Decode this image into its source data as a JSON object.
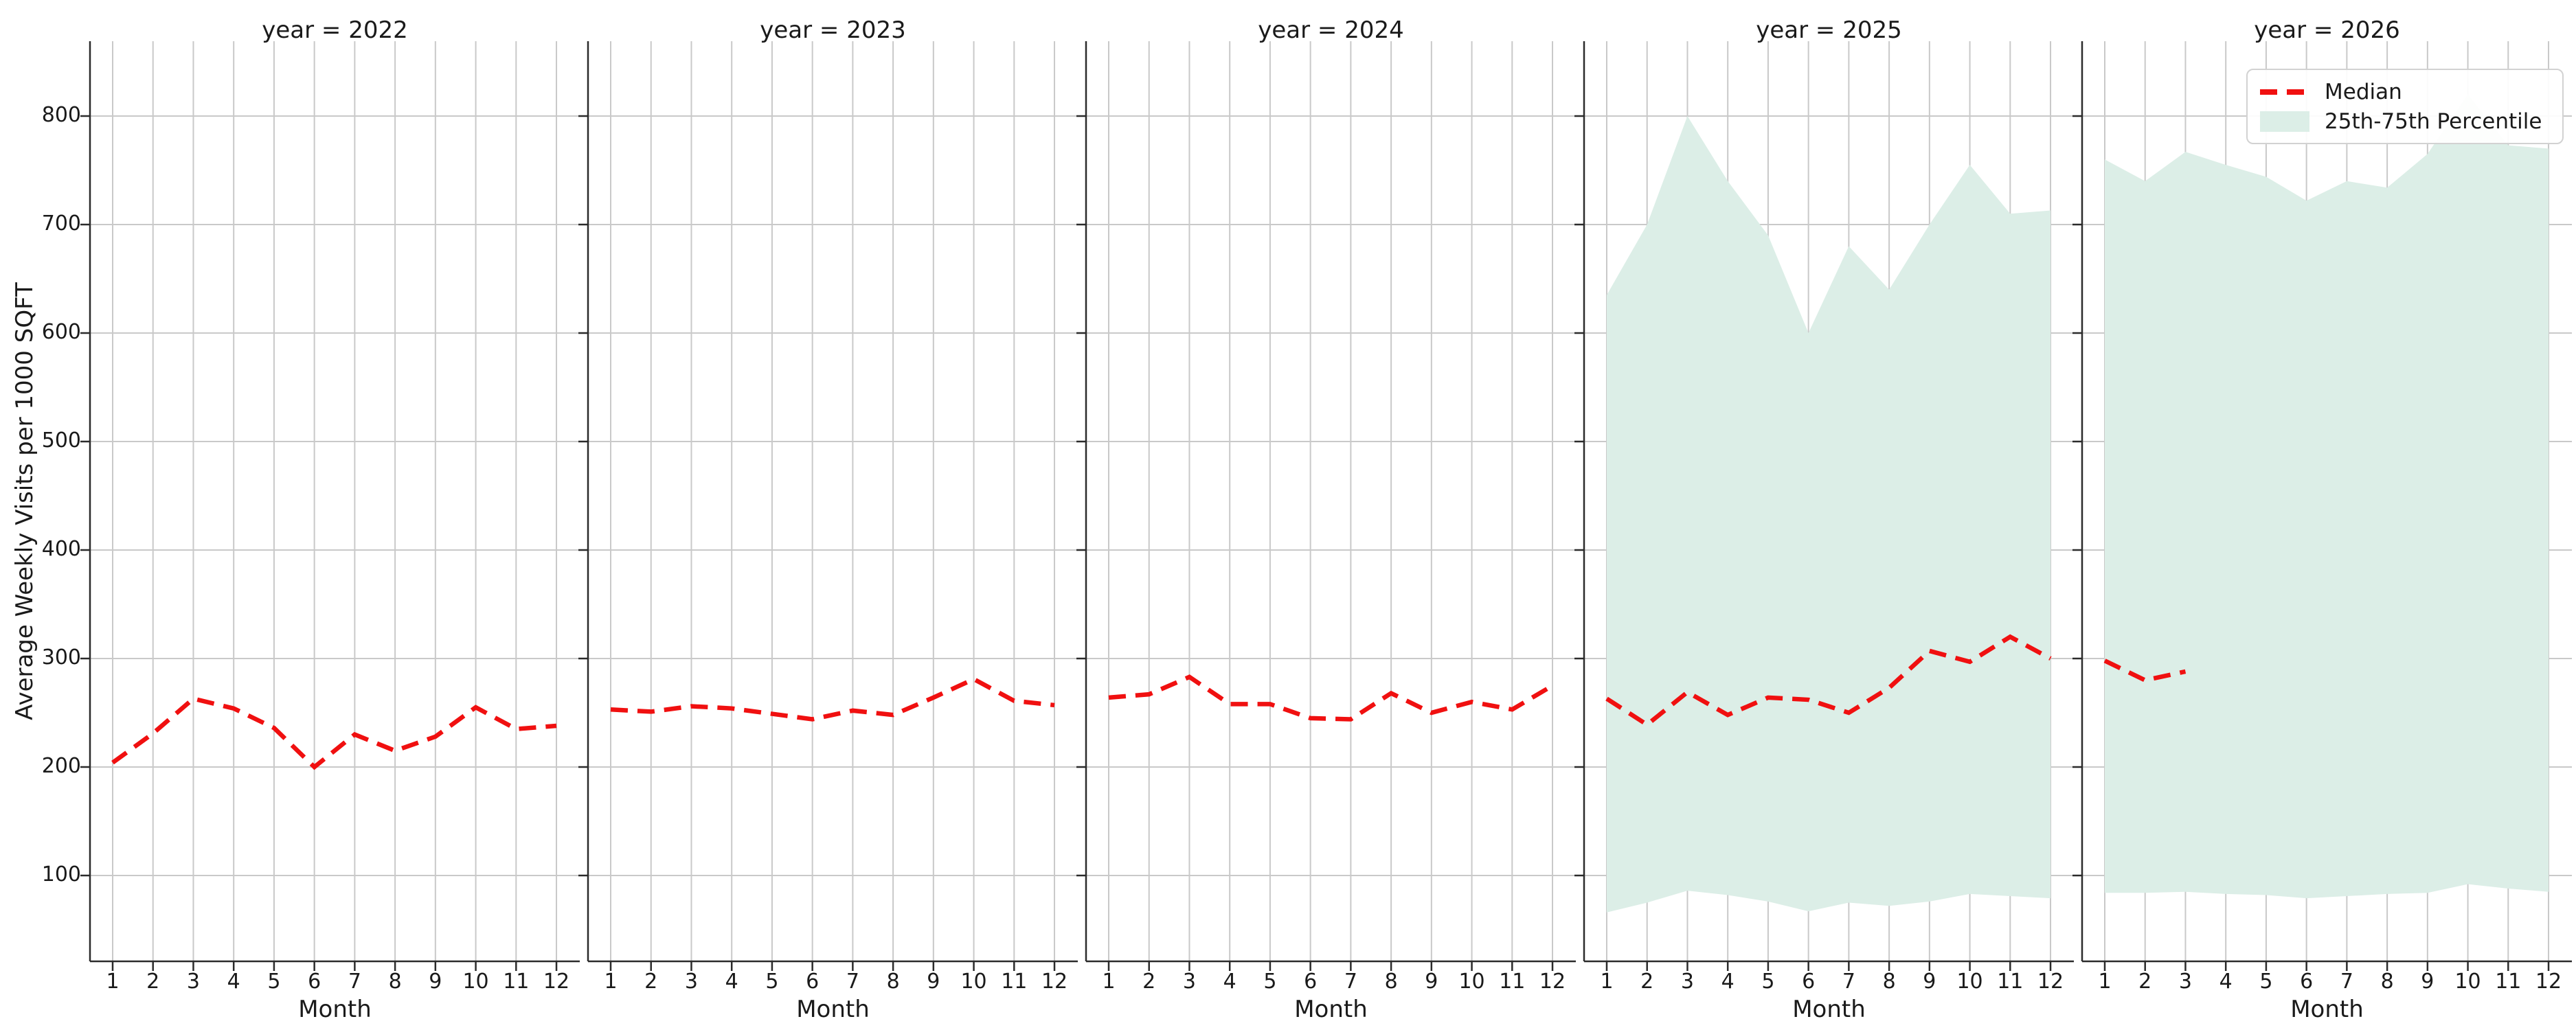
{
  "figure": {
    "ylabel": "Average Weekly Visits per 1000 SQFT",
    "xlabel": "Month",
    "y_ticks": [
      100,
      200,
      300,
      400,
      500,
      600,
      700,
      800
    ],
    "x_ticks": [
      1,
      2,
      3,
      4,
      5,
      6,
      7,
      8,
      9,
      10,
      11,
      12
    ],
    "ylim": [
      22,
      869
    ],
    "grid": true,
    "colors": {
      "median": "#f01010",
      "band": "#dceee7",
      "grid": "#c9c9c9",
      "spine": "#2b2b2b",
      "text": "#1a1a1a"
    },
    "legend": {
      "position": "upper right of last panel",
      "items": [
        {
          "label": "Median",
          "type": "line"
        },
        {
          "label": "25th-75th Percentile",
          "type": "band"
        }
      ]
    }
  },
  "chart_data": [
    {
      "type": "line",
      "title": "year = 2022",
      "x": [
        1,
        2,
        3,
        4,
        5,
        6,
        7,
        8,
        9,
        10,
        11,
        12
      ],
      "series": [
        {
          "name": "Median",
          "values": [
            204,
            231,
            263,
            254,
            236,
            200,
            230,
            215,
            228,
            255,
            235,
            238
          ]
        }
      ]
    },
    {
      "type": "line",
      "title": "year = 2023",
      "x": [
        1,
        2,
        3,
        4,
        5,
        6,
        7,
        8,
        9,
        10,
        11,
        12
      ],
      "series": [
        {
          "name": "Median",
          "values": [
            253,
            251,
            256,
            254,
            249,
            244,
            252,
            248,
            264,
            281,
            261,
            257
          ]
        }
      ]
    },
    {
      "type": "line",
      "title": "year = 2024",
      "x": [
        1,
        2,
        3,
        4,
        5,
        6,
        7,
        8,
        9,
        10,
        11,
        12
      ],
      "series": [
        {
          "name": "Median",
          "values": [
            264,
            267,
            283,
            258,
            258,
            245,
            244,
            268,
            250,
            260,
            253,
            275
          ]
        }
      ]
    },
    {
      "type": "line",
      "title": "year = 2025",
      "x": [
        1,
        2,
        3,
        4,
        5,
        6,
        7,
        8,
        9,
        10,
        11,
        12
      ],
      "series": [
        {
          "name": "Median",
          "values": [
            263,
            239,
            269,
            248,
            264,
            262,
            250,
            273,
            307,
            297,
            320,
            300
          ]
        },
        {
          "name": "25th Percentile",
          "values": [
            66,
            75,
            86,
            82,
            76,
            67,
            75,
            72,
            76,
            83,
            81,
            79
          ]
        },
        {
          "name": "75th Percentile",
          "values": [
            635,
            700,
            800,
            740,
            690,
            600,
            680,
            640,
            700,
            755,
            710,
            713
          ]
        }
      ]
    },
    {
      "type": "line",
      "title": "year = 2026",
      "x": [
        1,
        2,
        3,
        4,
        5,
        6,
        7,
        8,
        9,
        10,
        11,
        12
      ],
      "series": [
        {
          "name": "Median",
          "values": [
            298,
            280,
            288,
            null,
            null,
            null,
            null,
            null,
            null,
            null,
            null,
            null
          ]
        },
        {
          "name": "25th Percentile",
          "values": [
            84,
            84,
            85,
            83,
            82,
            79,
            81,
            83,
            84,
            92,
            88,
            85
          ]
        },
        {
          "name": "75th Percentile",
          "values": [
            760,
            740,
            767,
            755,
            744,
            722,
            740,
            734,
            765,
            820,
            773,
            770
          ]
        }
      ]
    }
  ]
}
